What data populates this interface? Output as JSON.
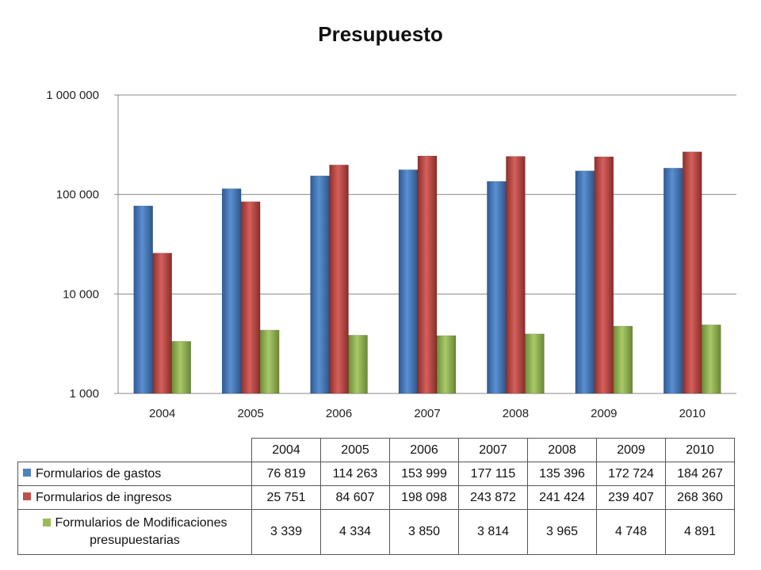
{
  "chart_data": {
    "type": "bar",
    "title": "Presupuesto",
    "yscale": "log",
    "ylim": [
      1000,
      1000000
    ],
    "yticks": [
      1000,
      10000,
      100000,
      1000000
    ],
    "ytick_labels": [
      "1 000",
      "10 000",
      "100 000",
      "1 000 000"
    ],
    "grid": true,
    "categories": [
      "2004",
      "2005",
      "2006",
      "2007",
      "2008",
      "2009",
      "2010"
    ],
    "series": [
      {
        "name": "Formularios de gastos",
        "color": "#4F81BD",
        "values": [
          76819,
          114263,
          153999,
          177115,
          135396,
          172724,
          184267
        ],
        "labels": [
          "76 819",
          "114 263",
          "153 999",
          "177 115",
          "135 396",
          "172 724",
          "184 267"
        ]
      },
      {
        "name": "Formularios de ingresos",
        "color": "#C0504D",
        "values": [
          25751,
          84607,
          198098,
          243872,
          241424,
          239407,
          268360
        ],
        "labels": [
          "25 751",
          "84 607",
          "198 098",
          "243 872",
          "241 424",
          "239 407",
          "268 360"
        ]
      },
      {
        "name": "Formularios de Modificaciones presupuestarias",
        "color": "#9BBB59",
        "values": [
          3339,
          4334,
          3850,
          3814,
          3965,
          4748,
          4891
        ],
        "labels": [
          "3 339",
          "4 334",
          "3 850",
          "3 814",
          "3 965",
          "4 748",
          "4 891"
        ]
      }
    ]
  }
}
